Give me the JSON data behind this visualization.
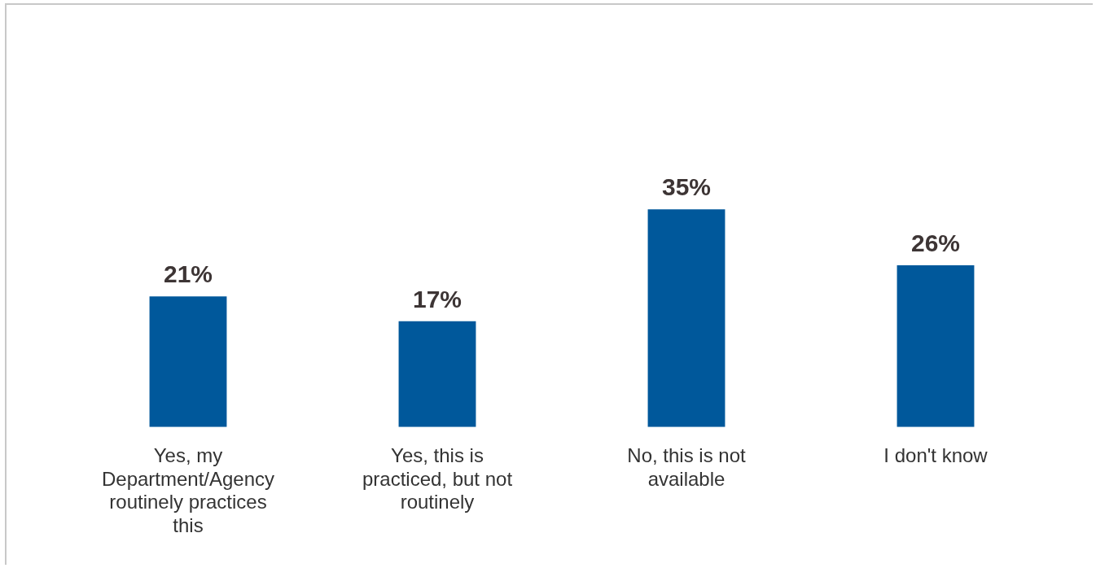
{
  "chart_data": {
    "type": "bar",
    "categories": [
      "Yes, my Department/Agency routinely practices this",
      "Yes, this is practiced, but not routinely",
      "No, this is not available",
      "I don't know"
    ],
    "values": [
      21,
      17,
      35,
      26
    ],
    "value_labels": [
      "21%",
      "17%",
      "35%",
      "26%"
    ],
    "color": "#00589b",
    "grid": false,
    "legend": false
  }
}
